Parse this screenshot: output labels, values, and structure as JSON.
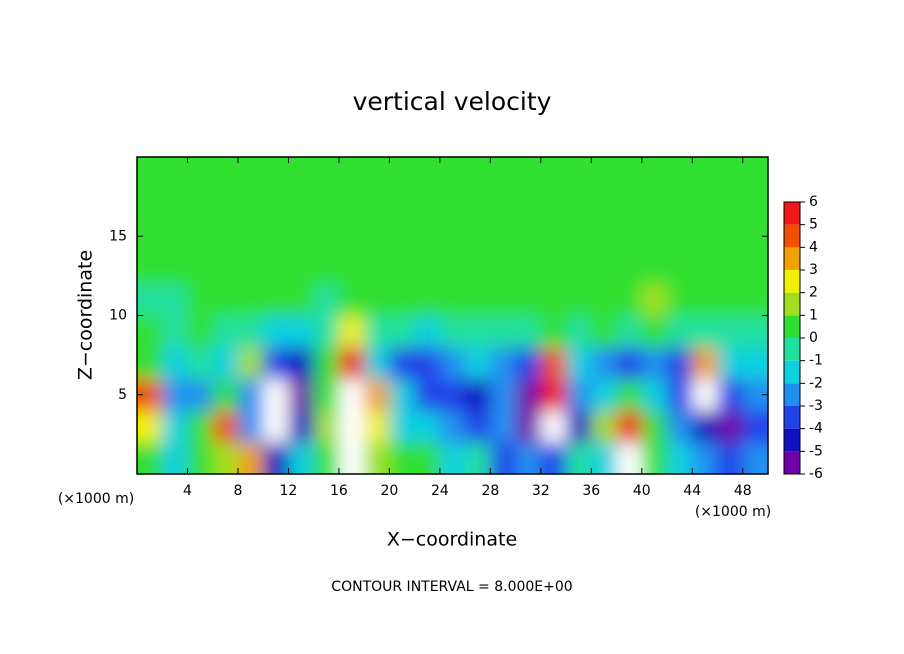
{
  "chart_data": {
    "type": "heatmap",
    "title": "vertical velocity",
    "x_label": "X−coordinate",
    "y_label": "Z−coordinate",
    "x_unit": "(×1000 m)",
    "y_unit": "(×1000 m)",
    "note": "CONTOUR INTERVAL = 8.000E+00",
    "xlim": [
      0,
      50
    ],
    "ylim": [
      0,
      20
    ],
    "xticks": [
      4,
      8,
      12,
      16,
      20,
      24,
      28,
      32,
      36,
      40,
      44,
      48
    ],
    "yticks": [
      5,
      10,
      15
    ],
    "x": [
      1,
      3,
      5,
      7,
      9,
      11,
      13,
      15,
      17,
      19,
      21,
      23,
      25,
      27,
      29,
      31,
      33,
      35,
      37,
      39,
      41,
      43,
      45,
      47,
      49
    ],
    "y": [
      1,
      3,
      5,
      7,
      9,
      11,
      13,
      15,
      17,
      19
    ],
    "z": [
      [
        0.5,
        -1,
        0.5,
        2,
        4,
        -4,
        -1,
        0.5,
        8,
        2,
        0.5,
        1,
        -1,
        -0.5,
        -3,
        -2,
        -3,
        0,
        -1,
        8,
        0.5,
        -1,
        -2,
        -3,
        -2
      ],
      [
        3,
        -1,
        0.5,
        5,
        -2,
        -7,
        -4,
        2,
        8,
        3,
        -1,
        -1,
        -2,
        -3,
        -2,
        -5,
        -7,
        -4,
        2,
        6,
        0.5,
        -2,
        -4,
        -5,
        -3
      ],
      [
        5,
        -2,
        -2,
        1,
        -2,
        -7,
        -5,
        1,
        7,
        4,
        -1,
        -3,
        -3,
        -4,
        -2,
        -6,
        6,
        -2,
        -1,
        0.5,
        -1,
        -3,
        -8,
        -3,
        -2
      ],
      [
        0.5,
        -1,
        -0.5,
        -1,
        2,
        -3,
        -4,
        1,
        6,
        -1,
        -3,
        -3,
        -2,
        -1,
        -2,
        -3,
        5,
        -1,
        -2,
        -3,
        -2,
        -3,
        4,
        -1,
        -1
      ],
      [
        0.5,
        0,
        0.5,
        0,
        0,
        -1,
        -1,
        0,
        3,
        0,
        0,
        -1,
        0,
        0,
        -0.5,
        0,
        1,
        0,
        0.5,
        0,
        1,
        0,
        0,
        0,
        0
      ],
      [
        0,
        0,
        0.5,
        0.5,
        0.5,
        0.5,
        0.5,
        0,
        0.5,
        0.5,
        0.5,
        0.5,
        0.5,
        0.5,
        0.5,
        0.5,
        0.5,
        0.5,
        0.5,
        1,
        1.5,
        0.5,
        1,
        0.5,
        0.5
      ],
      [
        0.5,
        0.5,
        0.5,
        0.3,
        0.5,
        0.5,
        0.5,
        0.5,
        0.3,
        0.5,
        0.5,
        0.5,
        0.5,
        0.5,
        0.5,
        0.5,
        0.5,
        0.5,
        0.5,
        0.8,
        0.8,
        0.5,
        0.5,
        0.5,
        0.5
      ],
      [
        0.5,
        0.5,
        0.5,
        0.5,
        0.5,
        0.5,
        0.5,
        0.5,
        0.5,
        0.5,
        0.5,
        0.5,
        0.5,
        0.5,
        0.5,
        0.5,
        0.5,
        0.5,
        0.5,
        0.8,
        0.5,
        0.5,
        0.5,
        0.5,
        0.5
      ],
      [
        0.5,
        0.5,
        0.5,
        0.5,
        0.5,
        0.5,
        0.5,
        0.5,
        0.5,
        0.5,
        0.5,
        0.5,
        0.5,
        0.5,
        0.5,
        0.5,
        0.5,
        0.5,
        0.5,
        0.5,
        0.5,
        0.5,
        0.5,
        0.5,
        0.5
      ],
      [
        0.5,
        0.5,
        0.5,
        0.5,
        0.5,
        0.5,
        0.5,
        0.5,
        0.5,
        0.5,
        0.5,
        0.5,
        0.5,
        0.5,
        0.5,
        0.5,
        0.5,
        0.5,
        0.5,
        0.5,
        0.5,
        0.5,
        0.5,
        0.5,
        0.5
      ]
    ],
    "levels": [
      -6,
      -5,
      -4,
      -3,
      -2,
      -1,
      0,
      1,
      2,
      3,
      4,
      5,
      6
    ],
    "colors": [
      "#7000a8",
      "#1010c0",
      "#2040e8",
      "#2090f0",
      "#10d0e0",
      "#20e0a0",
      "#30e030",
      "#a0e020",
      "#f0f000",
      "#f0a000",
      "#f05000",
      "#f01818"
    ],
    "over_color": "#ffffff"
  }
}
